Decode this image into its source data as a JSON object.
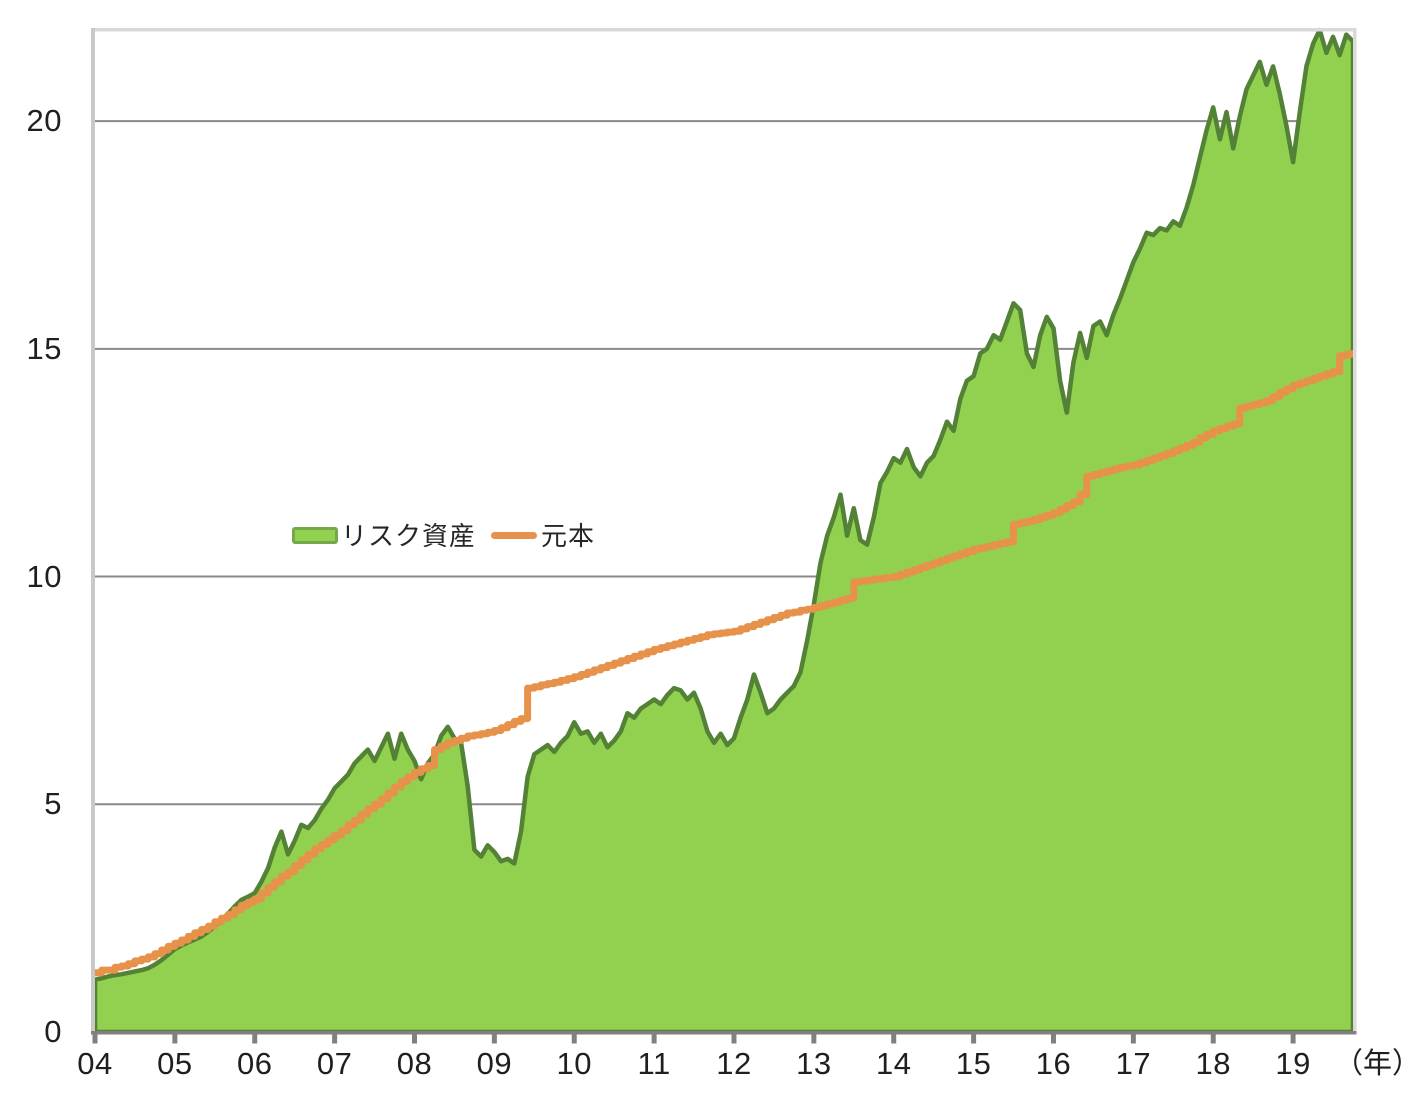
{
  "chart_data": {
    "type": "area",
    "title": "",
    "description": "Cumulative investment simulation: risk assets (green area) vs principal paid in (orange stepped line), 2004-2019",
    "x_axis": {
      "tick_labels": [
        "04",
        "05",
        "06",
        "07",
        "08",
        "09",
        "10",
        "11",
        "12",
        "13",
        "14",
        "15",
        "16",
        "17",
        "18",
        "19"
      ],
      "tick_years": [
        2004,
        2005,
        2006,
        2007,
        2008,
        2009,
        2010,
        2011,
        2012,
        2013,
        2014,
        2015,
        2016,
        2017,
        2018,
        2019
      ],
      "unit_label": "（年）",
      "min": 2004.0,
      "max": 2019.75
    },
    "y_axis": {
      "tick_labels": [
        "0",
        "5",
        "10",
        "15",
        "20"
      ],
      "tick_values": [
        0,
        5,
        10,
        15,
        20
      ],
      "gridlines": [
        5,
        10,
        15,
        20
      ],
      "min": 0,
      "max": 22
    },
    "sampling": {
      "start_year": 2004.0,
      "interval_years": 0.0833333,
      "note": "monthly samples, Jan 2004 - Oct 2019"
    },
    "legend": {
      "position": "inside-middle-left"
    },
    "series": [
      {
        "name": "リスク資産",
        "render": "area",
        "fill": "#92d050",
        "stroke": "#538135",
        "values": [
          1.15,
          1.18,
          1.22,
          1.25,
          1.27,
          1.3,
          1.33,
          1.36,
          1.4,
          1.48,
          1.58,
          1.7,
          1.82,
          1.9,
          1.97,
          2.03,
          2.1,
          2.2,
          2.32,
          2.45,
          2.6,
          2.76,
          2.9,
          2.97,
          3.05,
          3.3,
          3.6,
          4.05,
          4.4,
          3.9,
          4.2,
          4.55,
          4.48,
          4.65,
          4.9,
          5.1,
          5.35,
          5.5,
          5.65,
          5.9,
          6.05,
          6.2,
          5.95,
          6.25,
          6.55,
          6.0,
          6.55,
          6.2,
          5.95,
          5.55,
          5.9,
          6.1,
          6.5,
          6.7,
          6.45,
          6.35,
          5.4,
          4.0,
          3.85,
          4.1,
          3.95,
          3.75,
          3.8,
          3.7,
          4.4,
          5.6,
          6.1,
          6.2,
          6.3,
          6.15,
          6.35,
          6.5,
          6.8,
          6.55,
          6.6,
          6.35,
          6.55,
          6.25,
          6.4,
          6.6,
          7.0,
          6.9,
          7.1,
          7.2,
          7.3,
          7.2,
          7.4,
          7.55,
          7.5,
          7.3,
          7.45,
          7.1,
          6.6,
          6.35,
          6.55,
          6.3,
          6.45,
          6.9,
          7.3,
          7.85,
          7.45,
          7.0,
          7.1,
          7.3,
          7.45,
          7.6,
          7.9,
          8.6,
          9.4,
          10.3,
          10.9,
          11.3,
          11.8,
          10.9,
          11.5,
          10.8,
          10.7,
          11.3,
          12.05,
          12.3,
          12.6,
          12.5,
          12.8,
          12.4,
          12.2,
          12.5,
          12.65,
          13.0,
          13.4,
          13.2,
          13.9,
          14.3,
          14.4,
          14.9,
          15.0,
          15.3,
          15.2,
          15.6,
          16.0,
          15.85,
          14.9,
          14.6,
          15.3,
          15.7,
          15.45,
          14.3,
          13.6,
          14.7,
          15.35,
          14.8,
          15.5,
          15.6,
          15.3,
          15.75,
          16.1,
          16.5,
          16.9,
          17.2,
          17.55,
          17.5,
          17.65,
          17.6,
          17.8,
          17.7,
          18.1,
          18.6,
          19.2,
          19.8,
          20.3,
          19.6,
          20.2,
          19.4,
          20.1,
          20.7,
          21.0,
          21.3,
          20.8,
          21.2,
          20.6,
          19.9,
          19.1,
          20.2,
          21.2,
          21.7,
          22.0,
          21.5,
          21.85,
          21.45,
          21.9,
          21.75
        ]
      },
      {
        "name": "元本",
        "render": "step-line",
        "stroke": "#e7924a",
        "values": [
          1.3,
          1.36,
          1.36,
          1.42,
          1.45,
          1.5,
          1.56,
          1.6,
          1.65,
          1.72,
          1.8,
          1.88,
          1.95,
          2.02,
          2.1,
          2.18,
          2.25,
          2.32,
          2.42,
          2.5,
          2.58,
          2.68,
          2.78,
          2.85,
          2.92,
          3.05,
          3.18,
          3.3,
          3.42,
          3.52,
          3.65,
          3.78,
          3.9,
          4.02,
          4.12,
          4.22,
          4.32,
          4.42,
          4.55,
          4.65,
          4.78,
          4.9,
          5.0,
          5.12,
          5.25,
          5.38,
          5.5,
          5.6,
          5.7,
          5.78,
          5.85,
          6.2,
          6.28,
          6.35,
          6.4,
          6.45,
          6.5,
          6.52,
          6.55,
          6.58,
          6.62,
          6.68,
          6.75,
          6.82,
          6.88,
          7.55,
          7.58,
          7.62,
          7.65,
          7.68,
          7.72,
          7.76,
          7.8,
          7.85,
          7.9,
          7.95,
          8.0,
          8.05,
          8.1,
          8.15,
          8.2,
          8.25,
          8.3,
          8.35,
          8.4,
          8.44,
          8.48,
          8.52,
          8.56,
          8.6,
          8.64,
          8.68,
          8.72,
          8.74,
          8.76,
          8.78,
          8.8,
          8.85,
          8.9,
          8.95,
          9.0,
          9.05,
          9.1,
          9.15,
          9.2,
          9.22,
          9.26,
          9.28,
          9.32,
          9.36,
          9.4,
          9.44,
          9.48,
          9.52,
          9.88,
          9.9,
          9.92,
          9.94,
          9.96,
          9.98,
          10.0,
          10.05,
          10.1,
          10.15,
          10.2,
          10.25,
          10.3,
          10.35,
          10.4,
          10.45,
          10.5,
          10.55,
          10.6,
          10.63,
          10.66,
          10.7,
          10.73,
          10.76,
          11.15,
          11.18,
          11.21,
          11.25,
          11.3,
          11.35,
          11.4,
          11.48,
          11.56,
          11.64,
          11.8,
          12.2,
          12.24,
          12.28,
          12.32,
          12.36,
          12.4,
          12.42,
          12.45,
          12.5,
          12.55,
          12.6,
          12.65,
          12.7,
          12.76,
          12.82,
          12.88,
          12.95,
          13.05,
          13.12,
          13.2,
          13.25,
          13.3,
          13.35,
          13.7,
          13.74,
          13.78,
          13.82,
          13.86,
          13.95,
          14.05,
          14.12,
          14.2,
          14.25,
          14.3,
          14.35,
          14.4,
          14.45,
          14.5,
          14.85,
          14.88,
          14.9
        ]
      }
    ],
    "colors": {
      "area_fill": "#92d050",
      "area_border": "#538135",
      "principal_line": "#e7924a",
      "gridline": "#8a8a8a",
      "axis_bottom": "#808080",
      "axis_left": "#c9c9c9",
      "border_light": "#d9d9d9",
      "tick": "#808080",
      "text": "#1f1f1f"
    }
  }
}
